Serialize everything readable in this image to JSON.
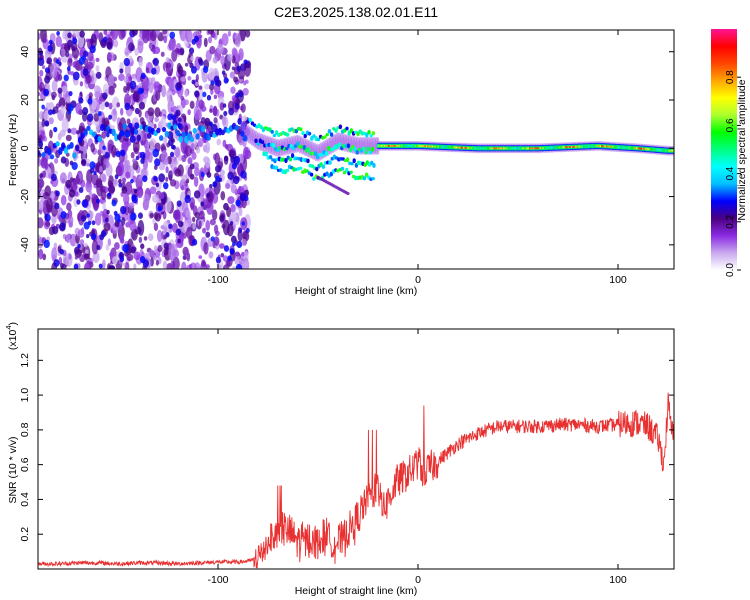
{
  "figure": {
    "title": "C2E3.2025.138.02.01.E11"
  },
  "colorbar": {
    "label": "Normalized spectral amplitude",
    "ticks": [
      0.0,
      0.2,
      0.4,
      0.6,
      0.8
    ],
    "range": [
      0,
      1
    ],
    "colors": [
      "#ffffff",
      "#c8a8ee",
      "#8a2be2",
      "#4b0082",
      "#0000ff",
      "#00bfff",
      "#00ffff",
      "#00ff7f",
      "#00ff00",
      "#adff2f",
      "#ffff00",
      "#ffa500",
      "#ff4500",
      "#ff0000",
      "#ff1493"
    ]
  },
  "chart_data": [
    {
      "type": "heatmap",
      "title": "",
      "xlabel": "Height of straight line (km)",
      "ylabel": "Frequency (Hz)",
      "xlim": [
        -190,
        128
      ],
      "ylim": [
        -50,
        49
      ],
      "xticks": [
        -100,
        0,
        100
      ],
      "yticks": [
        -40,
        -20,
        0,
        20,
        40
      ],
      "description_segments": [
        {
          "x_range": [
            -190,
            -85
          ],
          "pattern": "broadband scattered noise",
          "amplitude": 0.2
        },
        {
          "x_range": [
            -85,
            -20
          ],
          "pattern": "multiple drifting branches near 0 Hz",
          "amplitude": 0.45
        },
        {
          "x_range": [
            -20,
            128
          ],
          "pattern": "narrow band centered near 0 Hz",
          "amplitude": 0.75
        }
      ],
      "ridge": [
        {
          "x": -170,
          "f": 5
        },
        {
          "x": -140,
          "f": 7
        },
        {
          "x": -110,
          "f": 6
        },
        {
          "x": -90,
          "f": 9
        },
        {
          "x": -80,
          "f": 3
        },
        {
          "x": -70,
          "f": 0
        },
        {
          "x": -60,
          "f": 2
        },
        {
          "x": -50,
          "f": -2
        },
        {
          "x": -40,
          "f": 3
        },
        {
          "x": -30,
          "f": 1
        },
        {
          "x": -20,
          "f": 1
        },
        {
          "x": 0,
          "f": 1
        },
        {
          "x": 30,
          "f": 0
        },
        {
          "x": 60,
          "f": 0
        },
        {
          "x": 90,
          "f": 1
        },
        {
          "x": 110,
          "f": 0
        },
        {
          "x": 125,
          "f": -1
        }
      ]
    },
    {
      "type": "line",
      "title": "",
      "xlabel": "Height of straight line (km)",
      "ylabel": "SNR (10 * v/v)",
      "y_multiplier": "(x10",
      "y_multiplier_exp": "4",
      "xlim": [
        -190,
        128
      ],
      "ylim": [
        0,
        1.38
      ],
      "xticks": [
        -100,
        0,
        100
      ],
      "yticks": [
        0.2,
        0.4,
        0.6,
        0.8,
        1.0,
        1.2
      ],
      "series": [
        {
          "color": "#e83030",
          "x": [
            -190,
            -180,
            -170,
            -160,
            -150,
            -140,
            -130,
            -120,
            -110,
            -100,
            -90,
            -85,
            -80,
            -77,
            -74,
            -71,
            -68,
            -65,
            -62,
            -58,
            -54,
            -50,
            -46,
            -42,
            -38,
            -35,
            -32,
            -29,
            -26,
            -23,
            -20,
            -17,
            -14,
            -11,
            -8,
            -5,
            -2,
            0,
            3,
            6,
            10,
            15,
            20,
            25,
            30,
            35,
            40,
            50,
            60,
            70,
            80,
            90,
            100,
            105,
            110,
            115,
            120,
            123,
            125,
            127
          ],
          "y": [
            0.03,
            0.03,
            0.035,
            0.035,
            0.03,
            0.035,
            0.035,
            0.03,
            0.035,
            0.04,
            0.04,
            0.045,
            0.06,
            0.12,
            0.17,
            0.2,
            0.25,
            0.22,
            0.18,
            0.16,
            0.17,
            0.15,
            0.2,
            0.15,
            0.16,
            0.22,
            0.25,
            0.32,
            0.38,
            0.42,
            0.45,
            0.35,
            0.42,
            0.5,
            0.52,
            0.55,
            0.58,
            0.62,
            0.55,
            0.58,
            0.62,
            0.67,
            0.72,
            0.75,
            0.78,
            0.8,
            0.82,
            0.82,
            0.82,
            0.83,
            0.83,
            0.82,
            0.83,
            0.84,
            0.84,
            0.82,
            0.75,
            0.6,
            0.95,
            0.78
          ]
        }
      ]
    }
  ]
}
